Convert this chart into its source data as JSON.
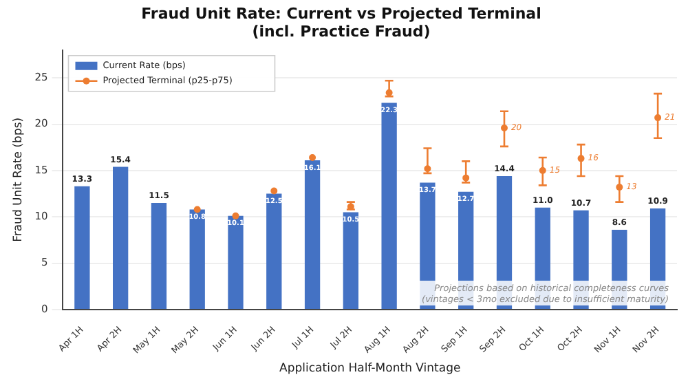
{
  "chart_data": {
    "type": "bar",
    "title": "Fraud Unit Rate: Current vs Projected Terminal\n(incl. Practice Fraud)",
    "xlabel": "Application Half-Month Vintage",
    "ylabel": "Fraud Unit Rate (bps)",
    "categories": [
      "Apr 1H",
      "Apr 2H",
      "May 1H",
      "May 2H",
      "Jun 1H",
      "Jun 2H",
      "Jul 1H",
      "Jul 2H",
      "Aug 1H",
      "Aug 2H",
      "Sep 1H",
      "Sep 2H",
      "Oct 1H",
      "Oct 2H",
      "Nov 1H",
      "Nov 2H"
    ],
    "series": [
      {
        "name": "Current Rate (bps)",
        "color": "#4472c4",
        "values": [
          13.3,
          15.4,
          11.5,
          10.8,
          10.1,
          12.5,
          16.1,
          10.5,
          22.3,
          13.7,
          12.7,
          14.4,
          11.0,
          10.7,
          8.6,
          10.9
        ],
        "value_labels": [
          "13.3",
          "15.4",
          "11.5",
          "10.8",
          "10.1",
          "12.5",
          "16.1",
          "10.5",
          "22.3",
          "13.7",
          "12.7",
          "14.4",
          "11.0",
          "10.7",
          "8.6",
          "10.9"
        ]
      },
      {
        "name": "Projected Terminal (p25-p75)",
        "type": "scatter",
        "color": "#ed7d31",
        "values": [
          null,
          null,
          null,
          10.8,
          10.1,
          12.8,
          16.4,
          11.1,
          23.4,
          15.2,
          14.2,
          19.6,
          15.0,
          16.3,
          13.2,
          20.7
        ],
        "errors": [
          null,
          null,
          null,
          null,
          null,
          null,
          null,
          [
            10.8,
            11.6
          ],
          [
            23.0,
            24.7
          ],
          [
            14.7,
            17.4
          ],
          [
            13.7,
            16.0
          ],
          [
            17.6,
            21.4
          ],
          [
            13.4,
            16.4
          ],
          [
            14.4,
            17.8
          ],
          [
            11.6,
            14.4
          ],
          [
            18.5,
            23.3
          ]
        ],
        "value_labels": [
          null,
          null,
          null,
          null,
          null,
          null,
          null,
          null,
          null,
          null,
          null,
          "20",
          "15",
          "16",
          "13",
          "21"
        ]
      }
    ],
    "ylim": [
      0,
      28
    ],
    "yticks": [
      0,
      5,
      10,
      15,
      20,
      25
    ],
    "grid": "y",
    "legend": "top left",
    "marker": "circle",
    "annotations": [
      "Projections based on historical completeness curves\n(vintages < 3mo excluded due to insufficient maturity)"
    ]
  }
}
